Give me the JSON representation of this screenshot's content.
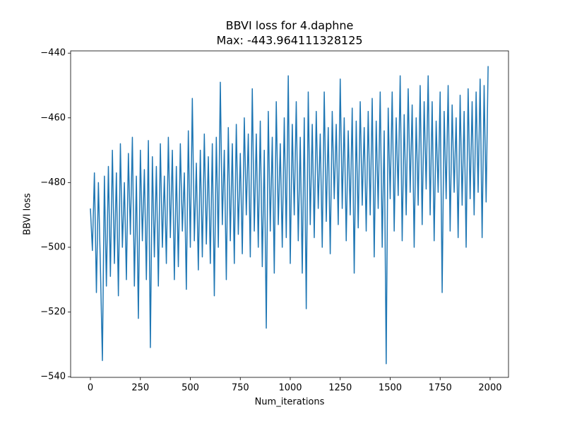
{
  "chart_data": {
    "type": "line",
    "title": "BBVI loss for 4.daphne",
    "subtitle": "Max: -443.964111328125",
    "x_label": "Num_iterations",
    "y_label": "BBVI loss",
    "xlim": [
      -99,
      2092
    ],
    "ylim": [
      -540.2,
      -439.3
    ],
    "xticks": [
      0,
      250,
      500,
      750,
      1000,
      1250,
      1500,
      1750,
      2000
    ],
    "yticks": [
      {
        "value": -440,
        "label": "−440"
      },
      {
        "value": -460,
        "label": "−460"
      },
      {
        "value": -480,
        "label": "−480"
      },
      {
        "value": -500,
        "label": "−500"
      },
      {
        "value": -520,
        "label": "−520"
      },
      {
        "value": -540,
        "label": "−540"
      }
    ],
    "grid": false,
    "x": [
      0,
      10,
      20,
      30,
      40,
      50,
      60,
      70,
      80,
      90,
      100,
      110,
      120,
      130,
      140,
      150,
      160,
      170,
      180,
      190,
      200,
      210,
      220,
      230,
      240,
      250,
      260,
      270,
      280,
      290,
      300,
      310,
      320,
      330,
      340,
      350,
      360,
      370,
      380,
      390,
      400,
      410,
      420,
      430,
      440,
      450,
      460,
      470,
      480,
      490,
      500,
      510,
      520,
      530,
      540,
      550,
      560,
      570,
      580,
      590,
      600,
      610,
      620,
      630,
      640,
      650,
      660,
      670,
      680,
      690,
      700,
      710,
      720,
      730,
      740,
      750,
      760,
      770,
      780,
      790,
      800,
      810,
      820,
      830,
      840,
      850,
      860,
      870,
      880,
      890,
      900,
      910,
      920,
      930,
      940,
      950,
      960,
      970,
      980,
      990,
      1000,
      1010,
      1020,
      1030,
      1040,
      1050,
      1060,
      1070,
      1080,
      1090,
      1100,
      1110,
      1120,
      1130,
      1140,
      1150,
      1160,
      1170,
      1180,
      1190,
      1200,
      1210,
      1220,
      1230,
      1240,
      1250,
      1260,
      1270,
      1280,
      1290,
      1300,
      1310,
      1320,
      1330,
      1340,
      1350,
      1360,
      1370,
      1380,
      1390,
      1400,
      1410,
      1420,
      1430,
      1440,
      1450,
      1460,
      1470,
      1480,
      1490,
      1500,
      1510,
      1520,
      1530,
      1540,
      1550,
      1560,
      1570,
      1580,
      1590,
      1600,
      1610,
      1620,
      1630,
      1640,
      1650,
      1660,
      1670,
      1680,
      1690,
      1700,
      1710,
      1720,
      1730,
      1740,
      1750,
      1760,
      1770,
      1780,
      1790,
      1800,
      1810,
      1820,
      1830,
      1840,
      1850,
      1860,
      1870,
      1880,
      1890,
      1900,
      1910,
      1920,
      1930,
      1940,
      1950,
      1960,
      1970,
      1980,
      1990
    ],
    "series": [
      {
        "color": "#1f77b4",
        "values": [
          -488,
          -501,
          -477,
          -514,
          -480,
          -506,
          -535,
          -478,
          -512,
          -475,
          -509,
          -470,
          -505,
          -477,
          -515,
          -468,
          -500,
          -480,
          -510,
          -471,
          -496,
          -466,
          -512,
          -478,
          -522,
          -470,
          -498,
          -476,
          -510,
          -467,
          -531,
          -472,
          -503,
          -475,
          -512,
          -468,
          -500,
          -478,
          -505,
          -466,
          -497,
          -470,
          -510,
          -475,
          -506,
          -468,
          -495,
          -477,
          -513,
          -464,
          -500,
          -454,
          -498,
          -474,
          -507,
          -470,
          -503,
          -465,
          -499,
          -472,
          -505,
          -468,
          -515,
          -466,
          -500,
          -449,
          -493,
          -470,
          -510,
          -463,
          -498,
          -468,
          -505,
          -462,
          -496,
          -471,
          -502,
          -460,
          -490,
          -465,
          -503,
          -451,
          -495,
          -465,
          -500,
          -461,
          -506,
          -470,
          -525,
          -458,
          -495,
          -466,
          -508,
          -455,
          -493,
          -468,
          -500,
          -460,
          -497,
          -447,
          -505,
          -462,
          -490,
          -455,
          -498,
          -466,
          -508,
          -460,
          -519,
          -452,
          -493,
          -462,
          -497,
          -458,
          -488,
          -465,
          -500,
          -452,
          -492,
          -463,
          -502,
          -458,
          -485,
          -462,
          -493,
          -448,
          -488,
          -460,
          -498,
          -464,
          -490,
          -457,
          -508,
          -461,
          -494,
          -455,
          -487,
          -463,
          -495,
          -458,
          -490,
          -454,
          -503,
          -461,
          -488,
          -452,
          -500,
          -464,
          -536,
          -457,
          -485,
          -452,
          -495,
          -460,
          -484,
          -447,
          -498,
          -459,
          -490,
          -451,
          -483,
          -456,
          -500,
          -460,
          -487,
          -450,
          -493,
          -455,
          -482,
          -447,
          -490,
          -455,
          -498,
          -461,
          -483,
          -452,
          -514,
          -458,
          -485,
          -450,
          -495,
          -456,
          -483,
          -460,
          -497,
          -453,
          -487,
          -458,
          -500,
          -451,
          -485,
          -455,
          -490,
          -452,
          -483,
          -448,
          -497,
          -450,
          -486,
          -444
        ]
      }
    ]
  }
}
